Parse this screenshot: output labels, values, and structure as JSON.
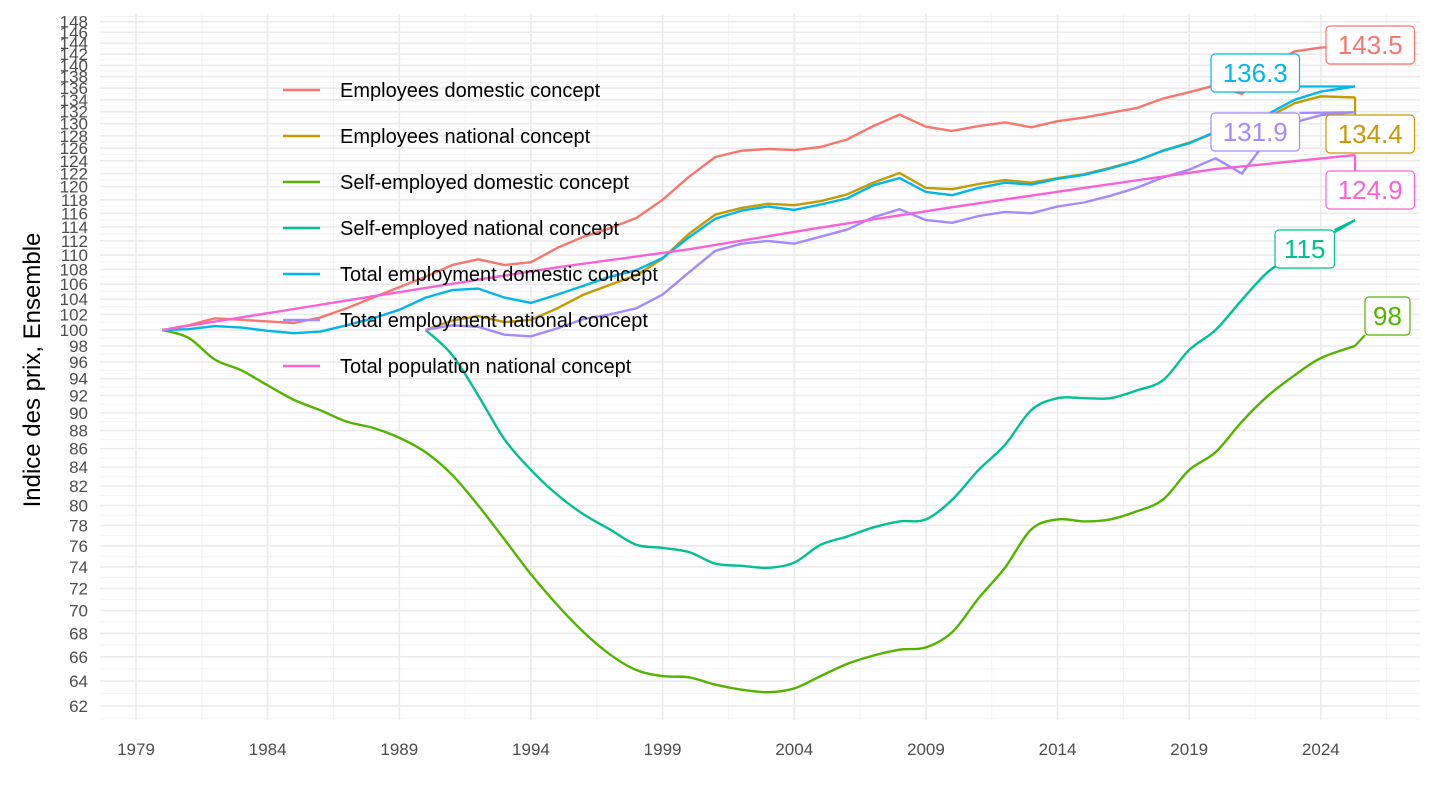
{
  "chart_data": {
    "type": "line",
    "title": "",
    "xlabel": "",
    "ylabel": "Indice des prix, Ensemble",
    "y_scale": "log",
    "ylim": [
      61,
      149
    ],
    "xlim": [
      1978.3,
      2028.2
    ],
    "x_ticks": [
      1979,
      1984,
      1989,
      1994,
      1999,
      2004,
      2009,
      2014,
      2019,
      2024
    ],
    "y_ticks": [
      62,
      64,
      66,
      68,
      70,
      72,
      74,
      76,
      78,
      80,
      82,
      84,
      86,
      88,
      90,
      92,
      94,
      96,
      98,
      100,
      102,
      104,
      106,
      108,
      110,
      112,
      114,
      116,
      118,
      120,
      122,
      124,
      126,
      128,
      130,
      132,
      134,
      136,
      138,
      140,
      142,
      144,
      146,
      148
    ],
    "grid": true,
    "legend_position": "inside-top-left",
    "series": [
      {
        "name": "Employees domestic concept",
        "color": "#F8766D",
        "end_label": "143.5",
        "x": [
          1980,
          1981,
          1982,
          1983,
          1984,
          1985,
          1986,
          1987,
          1988,
          1989,
          1990,
          1991,
          1992,
          1993,
          1994,
          1995,
          1996,
          1997,
          1998,
          1999,
          2000,
          2001,
          2002,
          2003,
          2004,
          2005,
          2006,
          2007,
          2008,
          2009,
          2010,
          2011,
          2012,
          2013,
          2014,
          2015,
          2016,
          2017,
          2018,
          2019,
          2020,
          2021,
          2022,
          2023,
          2024,
          2025.3
        ],
        "values": [
          100,
          100.6,
          101.5,
          101.3,
          101.1,
          100.9,
          101.6,
          102.8,
          104.2,
          105.6,
          107.0,
          108.6,
          109.4,
          108.6,
          109.0,
          111.0,
          112.6,
          113.8,
          115.3,
          118.0,
          121.5,
          124.6,
          125.6,
          125.9,
          125.7,
          126.2,
          127.4,
          129.6,
          131.5,
          129.5,
          128.8,
          129.6,
          130.2,
          129.4,
          130.4,
          131.0,
          131.8,
          132.6,
          134.2,
          135.3,
          136.5,
          135.0,
          139.8,
          142.5,
          143.2,
          143.5
        ]
      },
      {
        "name": "Employees national concept",
        "color": "#C49A00",
        "end_label": "134.4",
        "x": [
          1990,
          1991,
          1992,
          1993,
          1994,
          1995,
          1996,
          1997,
          1998,
          1999,
          2000,
          2001,
          2002,
          2003,
          2004,
          2005,
          2006,
          2007,
          2008,
          2009,
          2010,
          2011,
          2012,
          2013,
          2014,
          2015,
          2016,
          2017,
          2018,
          2019,
          2020,
          2021,
          2022,
          2023,
          2024,
          2025.3
        ],
        "values": [
          100,
          101.2,
          101.8,
          101.0,
          101.3,
          102.8,
          104.6,
          105.9,
          107.2,
          109.5,
          113.0,
          115.8,
          116.8,
          117.4,
          117.2,
          117.8,
          118.8,
          120.6,
          122.1,
          119.8,
          119.6,
          120.4,
          121.0,
          120.6,
          121.3,
          121.9,
          122.9,
          124.0,
          125.6,
          126.9,
          128.5,
          125.8,
          131.1,
          133.4,
          134.6,
          134.4
        ]
      },
      {
        "name": "Self-employed domestic concept",
        "color": "#53B400",
        "end_label": "98",
        "x": [
          1980,
          1981,
          1982,
          1983,
          1984,
          1985,
          1986,
          1987,
          1988,
          1989,
          1990,
          1991,
          1992,
          1993,
          1994,
          1995,
          1996,
          1997,
          1998,
          1999,
          2000,
          2001,
          2002,
          2003,
          2004,
          2005,
          2006,
          2007,
          2008,
          2009,
          2010,
          2011,
          2012,
          2013,
          2014,
          2015,
          2016,
          2017,
          2018,
          2019,
          2020,
          2021,
          2022,
          2023,
          2024,
          2025.3
        ],
        "values": [
          100,
          99.0,
          96.3,
          95.0,
          93.2,
          91.5,
          90.3,
          89.0,
          88.3,
          87.2,
          85.6,
          83.2,
          80.0,
          76.6,
          73.3,
          70.5,
          68.1,
          66.2,
          64.9,
          64.4,
          64.3,
          63.7,
          63.3,
          63.1,
          63.4,
          64.4,
          65.4,
          66.1,
          66.6,
          66.8,
          68.1,
          71.1,
          73.9,
          77.6,
          78.6,
          78.4,
          78.6,
          79.4,
          80.6,
          83.7,
          85.6,
          89.0,
          92.0,
          94.4,
          96.5,
          98.0
        ]
      },
      {
        "name": "Self-employed national concept",
        "color": "#00C094",
        "end_label": "115",
        "x": [
          1990,
          1991,
          1992,
          1993,
          1994,
          1995,
          1996,
          1997,
          1998,
          1999,
          2000,
          2001,
          2002,
          2003,
          2004,
          2005,
          2006,
          2007,
          2008,
          2009,
          2010,
          2011,
          2012,
          2013,
          2014,
          2015,
          2016,
          2017,
          2018,
          2019,
          2020,
          2021,
          2022,
          2023,
          2024,
          2025.3
        ],
        "values": [
          100,
          96.9,
          92.0,
          87.0,
          83.7,
          81.1,
          79.1,
          77.6,
          76.1,
          75.8,
          75.4,
          74.3,
          74.1,
          73.9,
          74.4,
          76.1,
          76.9,
          77.8,
          78.4,
          78.6,
          80.6,
          83.7,
          86.4,
          90.3,
          91.7,
          91.7,
          91.7,
          92.6,
          93.8,
          97.5,
          100.0,
          103.9,
          107.7,
          110.0,
          112.1,
          115.0
        ]
      },
      {
        "name": "Total employment domestic concept",
        "color": "#00B6EB",
        "end_label": "136.3",
        "x": [
          1980,
          1981,
          1982,
          1983,
          1984,
          1985,
          1986,
          1987,
          1988,
          1989,
          1990,
          1991,
          1992,
          1993,
          1994,
          1995,
          1996,
          1997,
          1998,
          1999,
          2000,
          2001,
          2002,
          2003,
          2004,
          2005,
          2006,
          2007,
          2008,
          2009,
          2010,
          2011,
          2012,
          2013,
          2014,
          2015,
          2016,
          2017,
          2018,
          2019,
          2020,
          2021,
          2022,
          2023,
          2024,
          2025.3
        ],
        "values": [
          100,
          100.1,
          100.5,
          100.3,
          99.9,
          99.6,
          99.8,
          100.6,
          101.5,
          102.6,
          104.2,
          105.2,
          105.4,
          104.2,
          103.5,
          104.6,
          105.8,
          107.0,
          107.9,
          109.6,
          112.5,
          115.2,
          116.4,
          117.0,
          116.5,
          117.3,
          118.2,
          120.2,
          121.3,
          119.2,
          118.7,
          119.8,
          120.6,
          120.3,
          121.2,
          121.8,
          122.8,
          124.0,
          125.6,
          126.8,
          128.7,
          126.3,
          131.6,
          134.0,
          135.4,
          136.3
        ]
      },
      {
        "name": "Total employment national concept",
        "color": "#A58AFF",
        "end_label": "131.9",
        "x": [
          1990,
          1991,
          1992,
          1993,
          1994,
          1995,
          1996,
          1997,
          1998,
          1999,
          2000,
          2001,
          2002,
          2003,
          2004,
          2005,
          2006,
          2007,
          2008,
          2009,
          2010,
          2011,
          2012,
          2013,
          2014,
          2015,
          2016,
          2017,
          2018,
          2019,
          2020,
          2021,
          2022,
          2023,
          2024,
          2025.3
        ],
        "values": [
          100,
          100.6,
          100.4,
          99.4,
          99.2,
          100.2,
          101.4,
          102.0,
          102.8,
          104.6,
          107.6,
          110.6,
          111.6,
          112.0,
          111.6,
          112.6,
          113.6,
          115.4,
          116.6,
          115.0,
          114.6,
          115.6,
          116.2,
          116.0,
          117.0,
          117.6,
          118.6,
          119.8,
          121.4,
          122.6,
          124.4,
          122.0,
          127.6,
          130.2,
          131.4,
          131.9
        ]
      },
      {
        "name": "Total population national concept",
        "color": "#FB61D7",
        "end_label": "124.9",
        "x": [
          1980,
          1985,
          1990,
          1995,
          2000,
          2005,
          2010,
          2015,
          2020,
          2025.3
        ],
        "values": [
          100,
          102.7,
          105.5,
          108.3,
          110.8,
          113.9,
          116.9,
          119.8,
          122.7,
          124.9
        ]
      }
    ]
  }
}
